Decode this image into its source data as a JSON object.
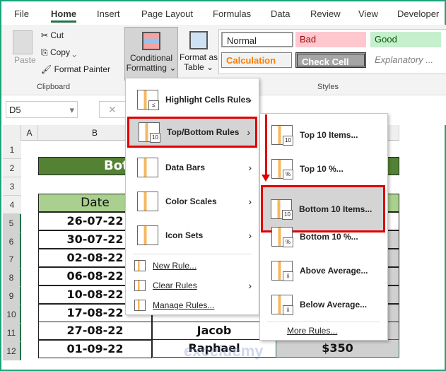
{
  "tabs": [
    "File",
    "Home",
    "Insert",
    "Page Layout",
    "Formulas",
    "Data",
    "Review",
    "View",
    "Developer"
  ],
  "active_tab": "Home",
  "clipboard": {
    "paste": "Paste",
    "cut": "Cut",
    "copy": "Copy",
    "format_painter": "Format Painter",
    "group": "Clipboard"
  },
  "cf_button": {
    "line1": "Conditional",
    "line2": "Formatting"
  },
  "fat_button": {
    "line1": "Format as",
    "line2": "Table"
  },
  "styles": {
    "group": "Styles",
    "normal": "Normal",
    "bad": "Bad",
    "good": "Good",
    "calculation": "Calculation",
    "check_cell": "Check Cell",
    "explanatory": "Explanatory ..."
  },
  "name_box": "D5",
  "columns": [
    "A",
    "B"
  ],
  "rows": [
    "1",
    "2",
    "3",
    "4",
    "5",
    "6",
    "7",
    "8",
    "9",
    "10",
    "11",
    "12"
  ],
  "sheet": {
    "title": "Bot",
    "header_date": "Date",
    "dates": [
      "26-07-22",
      "30-07-22",
      "02-08-22",
      "06-08-22",
      "10-08-22",
      "17-08-22",
      "27-08-22",
      "01-09-22"
    ],
    "names": {
      "r11": "Jacob",
      "r12": "Raphael"
    },
    "d12": "$350"
  },
  "menu": {
    "items": [
      "Highlight Cells Rules",
      "Top/Bottom Rules",
      "Data Bars",
      "Color Scales",
      "Icon Sets"
    ],
    "small": [
      "New Rule...",
      "Clear Rules",
      "Manage Rules..."
    ]
  },
  "submenu": {
    "items": [
      "Top 10 Items...",
      "Top 10 %...",
      "Bottom 10 Items...",
      "Bottom 10 %...",
      "Above Average...",
      "Below Average..."
    ],
    "badges": [
      "10",
      "%",
      "10",
      "%",
      "x̄",
      "x̄"
    ],
    "more": "More Rules..."
  },
  "watermark": "exceldemy",
  "colors": {
    "accent": "#217346",
    "highlight_border": "#e00000",
    "title_fill": "#548235",
    "header_fill": "#a9d08e"
  }
}
